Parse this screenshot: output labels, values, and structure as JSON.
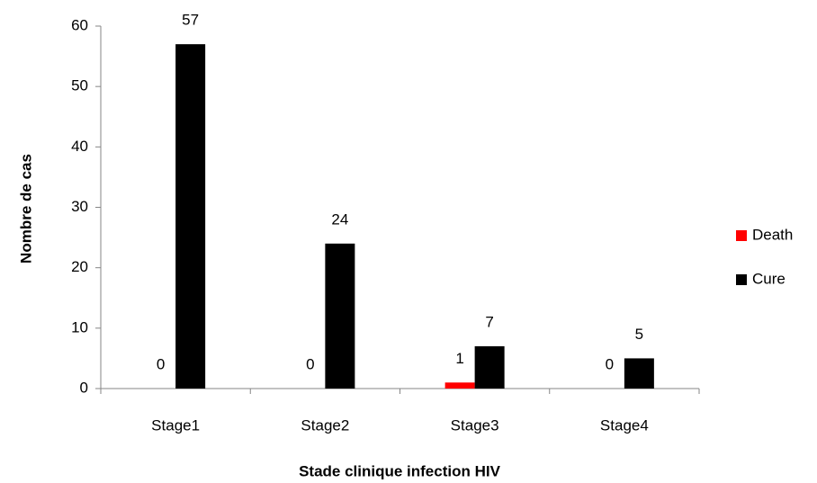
{
  "chart_data": {
    "type": "bar",
    "xlabel": "Stade clinique infection HIV",
    "ylabel": "Nombre de cas",
    "categories": [
      "Stage1",
      "Stage2",
      "Stage3",
      "Stage4"
    ],
    "series": [
      {
        "name": "Death",
        "color": "#ff0000",
        "values": [
          0,
          0,
          1,
          0
        ]
      },
      {
        "name": "Cure",
        "color": "#000000",
        "values": [
          57,
          24,
          7,
          5
        ]
      }
    ],
    "ylim": [
      0,
      60
    ],
    "yticks": [
      0,
      10,
      20,
      30,
      40,
      50,
      60
    ],
    "grid": false,
    "legend": "right"
  }
}
